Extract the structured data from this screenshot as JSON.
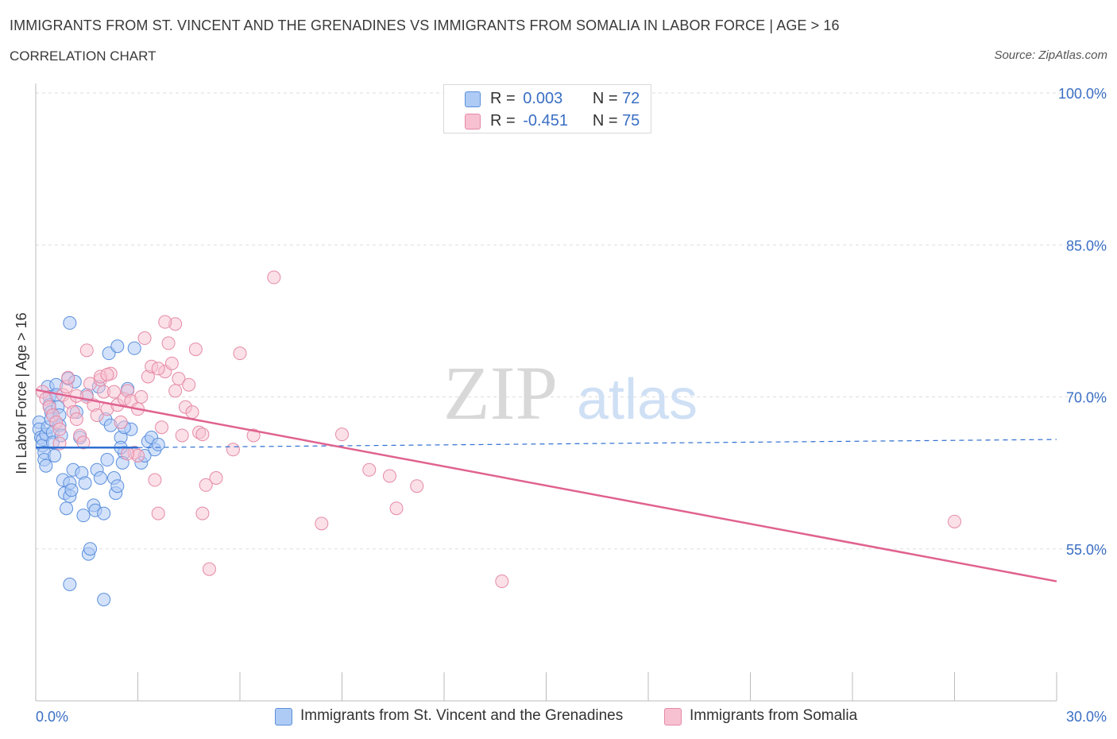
{
  "title": "IMMIGRANTS FROM ST. VINCENT AND THE GRENADINES VS IMMIGRANTS FROM SOMALIA IN LABOR FORCE | AGE > 16",
  "subtitle": "CORRELATION CHART",
  "source": "Source: ZipAtlas.com",
  "watermark": {
    "zip": "ZIP",
    "atlas": "atlas"
  },
  "legend": {
    "r_label": "R =",
    "n_label": "N =",
    "rows": [
      {
        "r": "0.003",
        "n": "72"
      },
      {
        "r": "-0.451",
        "n": "75"
      }
    ]
  },
  "colors": {
    "blue_fill": "#aecbf5",
    "blue_stroke": "#5b8fdc",
    "blue_line": "#2f6fd1",
    "pink_fill": "#f7c1d1",
    "pink_stroke": "#e58aa6",
    "pink_line": "#e0628f",
    "axis_text": "#3a6fc4",
    "grid": "#dddddd"
  },
  "chart_data": {
    "type": "scatter",
    "title": "IMMIGRANTS FROM ST. VINCENT AND THE GRENADINES VS IMMIGRANTS FROM SOMALIA IN LABOR FORCE | AGE > 16",
    "subtitle": "CORRELATION CHART",
    "ylabel": "In Labor Force | Age > 16",
    "xlim": [
      0,
      30
    ],
    "ylim": [
      40,
      100
    ],
    "x_tick_labels": [
      "0.0%",
      "30.0%"
    ],
    "y_ticks": [
      100,
      85,
      70,
      55
    ],
    "y_tick_labels": [
      "100.0%",
      "85.0%",
      "70.0%",
      "55.0%"
    ],
    "grid": true,
    "legend_position": "top-center",
    "series": [
      {
        "name": "Immigrants from St. Vincent and the Grenadines",
        "color": "blue",
        "trend": {
          "x0": 0.0,
          "y0": 65.0,
          "x1": 3.0,
          "y1": 65.0,
          "dashed_to_x": 30.0,
          "dashed_to_y": 65.8
        },
        "points": [
          [
            0.1,
            67.5
          ],
          [
            0.1,
            66.8
          ],
          [
            0.15,
            66.0
          ],
          [
            0.2,
            65.8
          ],
          [
            0.2,
            65.2
          ],
          [
            0.25,
            64.5
          ],
          [
            0.25,
            63.8
          ],
          [
            0.3,
            63.2
          ],
          [
            0.3,
            66.3
          ],
          [
            0.35,
            67.0
          ],
          [
            0.35,
            71.0
          ],
          [
            0.4,
            70.0
          ],
          [
            0.4,
            69.2
          ],
          [
            0.45,
            68.5
          ],
          [
            0.45,
            67.8
          ],
          [
            0.5,
            66.5
          ],
          [
            0.5,
            65.5
          ],
          [
            0.55,
            64.2
          ],
          [
            0.6,
            71.2
          ],
          [
            0.6,
            70.2
          ],
          [
            0.65,
            69.0
          ],
          [
            0.7,
            68.2
          ],
          [
            0.7,
            67.2
          ],
          [
            0.75,
            66.2
          ],
          [
            0.8,
            61.8
          ],
          [
            0.85,
            60.5
          ],
          [
            0.9,
            59.0
          ],
          [
            0.95,
            71.8
          ],
          [
            1.0,
            61.5
          ],
          [
            1.0,
            60.2
          ],
          [
            1.05,
            60.8
          ],
          [
            1.1,
            62.8
          ],
          [
            1.15,
            71.5
          ],
          [
            1.2,
            68.5
          ],
          [
            1.3,
            66.0
          ],
          [
            1.35,
            62.5
          ],
          [
            1.4,
            58.3
          ],
          [
            1.45,
            61.5
          ],
          [
            1.5,
            70.2
          ],
          [
            1.55,
            54.5
          ],
          [
            1.6,
            55.0
          ],
          [
            1.7,
            59.3
          ],
          [
            1.75,
            58.8
          ],
          [
            1.8,
            62.8
          ],
          [
            1.85,
            71.0
          ],
          [
            1.9,
            62.0
          ],
          [
            2.0,
            58.5
          ],
          [
            2.05,
            67.8
          ],
          [
            2.1,
            63.8
          ],
          [
            2.15,
            74.3
          ],
          [
            2.2,
            67.2
          ],
          [
            2.3,
            62.0
          ],
          [
            2.35,
            60.5
          ],
          [
            2.4,
            61.2
          ],
          [
            2.5,
            66.0
          ],
          [
            2.6,
            64.5
          ],
          [
            2.0,
            50.0
          ],
          [
            1.0,
            51.5
          ],
          [
            1.0,
            77.3
          ],
          [
            2.4,
            75.0
          ],
          [
            2.5,
            65.0
          ],
          [
            2.8,
            66.8
          ],
          [
            2.55,
            63.5
          ],
          [
            2.6,
            67.0
          ],
          [
            2.7,
            70.8
          ],
          [
            2.9,
            74.8
          ],
          [
            3.1,
            63.5
          ],
          [
            3.2,
            64.2
          ],
          [
            3.3,
            65.6
          ],
          [
            3.4,
            66.0
          ],
          [
            3.5,
            64.8
          ],
          [
            3.6,
            65.3
          ]
        ]
      },
      {
        "name": "Immigrants from Somalia",
        "color": "pink",
        "trend": {
          "x0": 0.0,
          "y0": 70.7,
          "x1": 30.0,
          "y1": 51.8
        },
        "points": [
          [
            0.2,
            70.5
          ],
          [
            0.3,
            69.8
          ],
          [
            0.4,
            69.0
          ],
          [
            0.5,
            68.2
          ],
          [
            0.6,
            67.5
          ],
          [
            0.7,
            66.8
          ],
          [
            0.8,
            70.2
          ],
          [
            0.9,
            71.0
          ],
          [
            1.0,
            69.5
          ],
          [
            1.1,
            68.5
          ],
          [
            1.2,
            67.8
          ],
          [
            1.3,
            66.2
          ],
          [
            1.4,
            65.5
          ],
          [
            1.5,
            70.0
          ],
          [
            1.6,
            71.3
          ],
          [
            1.7,
            69.2
          ],
          [
            1.8,
            68.2
          ],
          [
            1.9,
            71.7
          ],
          [
            2.0,
            70.5
          ],
          [
            2.1,
            68.8
          ],
          [
            2.2,
            72.3
          ],
          [
            2.3,
            70.5
          ],
          [
            2.4,
            69.2
          ],
          [
            2.5,
            67.5
          ],
          [
            2.6,
            69.8
          ],
          [
            2.7,
            70.6
          ],
          [
            2.8,
            69.6
          ],
          [
            2.9,
            64.5
          ],
          [
            3.0,
            68.8
          ],
          [
            3.1,
            70.0
          ],
          [
            3.2,
            75.8
          ],
          [
            3.3,
            72.0
          ],
          [
            3.4,
            73.0
          ],
          [
            3.5,
            61.8
          ],
          [
            3.6,
            58.5
          ],
          [
            3.7,
            67.0
          ],
          [
            3.8,
            72.5
          ],
          [
            3.9,
            75.3
          ],
          [
            4.0,
            73.3
          ],
          [
            4.1,
            70.6
          ],
          [
            4.2,
            71.8
          ],
          [
            4.3,
            66.2
          ],
          [
            4.4,
            69.0
          ],
          [
            4.5,
            71.2
          ],
          [
            4.6,
            68.5
          ],
          [
            4.7,
            74.7
          ],
          [
            4.8,
            66.5
          ],
          [
            4.9,
            58.5
          ],
          [
            5.0,
            61.3
          ],
          [
            5.1,
            53.0
          ],
          [
            5.3,
            62.0
          ],
          [
            5.8,
            64.8
          ],
          [
            6.0,
            74.3
          ],
          [
            6.4,
            66.2
          ],
          [
            7.0,
            81.8
          ],
          [
            8.4,
            57.5
          ],
          [
            9.0,
            66.3
          ],
          [
            9.8,
            62.8
          ],
          [
            10.4,
            62.2
          ],
          [
            10.6,
            59.0
          ],
          [
            11.2,
            61.2
          ],
          [
            13.7,
            51.8
          ],
          [
            27.0,
            57.7
          ],
          [
            3.0,
            64.2
          ],
          [
            1.9,
            72.0
          ],
          [
            0.95,
            71.9
          ],
          [
            4.1,
            77.2
          ],
          [
            3.6,
            72.8
          ],
          [
            2.1,
            72.2
          ],
          [
            1.5,
            74.6
          ],
          [
            0.7,
            65.4
          ],
          [
            1.2,
            70.1
          ],
          [
            3.8,
            77.4
          ],
          [
            2.7,
            64.4
          ],
          [
            4.9,
            66.3
          ]
        ]
      }
    ]
  }
}
